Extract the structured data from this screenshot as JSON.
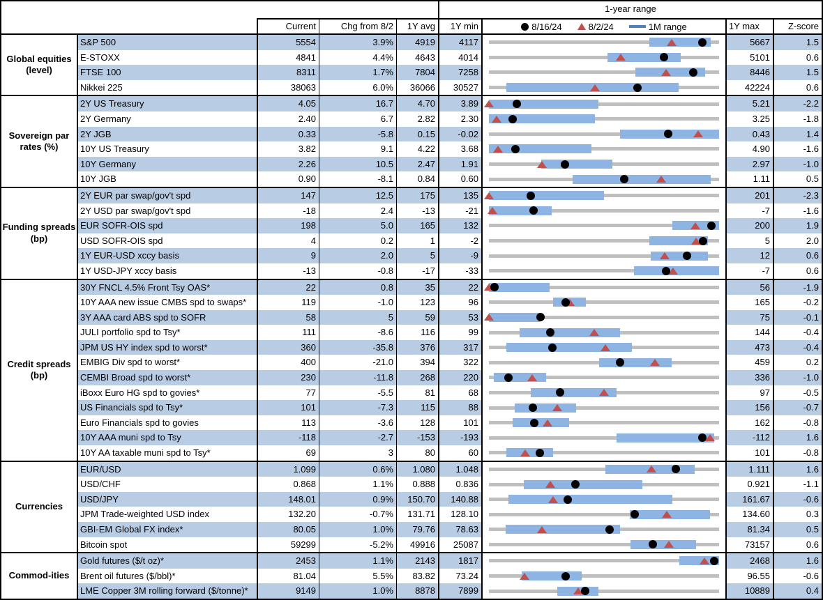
{
  "header": {
    "range_title": "1-year range",
    "columns": {
      "current": "Current",
      "chg": "Chg from 8/2",
      "avg": "1Y avg",
      "min": "1Y min",
      "max": "1Y max",
      "z": "Z-score"
    },
    "legend": [
      {
        "icon": "black-dot",
        "label": "8/16/24"
      },
      {
        "icon": "red-triangle",
        "label": "8/2/24"
      },
      {
        "icon": "blue-bar",
        "label": "1M range"
      }
    ]
  },
  "colors": {
    "row_tint": "#b8cce4",
    "range_bar": "#8eb4e3",
    "legend_bar": "#4f81bd",
    "track_gray": "#bfbfbf",
    "triangle_red": "#c0504d",
    "dot_black": "#000000"
  },
  "chart_data": {
    "type": "table",
    "note": "Market monitor table; each row has a bullet-style 1-year range strip. dot/tri/bar values are fractions of the 1Y min-to-max span: dot = 8/16/24 level, tri = 8/2/24 level, bar = [low, high] of the 1M range.",
    "sections": [
      {
        "group": "Global equities (level)",
        "rows": [
          {
            "name": "S&P 500",
            "current": "5554",
            "chg": "3.9%",
            "avg": "4919",
            "min": "4117",
            "max": "5667",
            "z": "1.5",
            "bar": [
              0.697,
              0.964
            ],
            "dot": 0.927,
            "tri": 0.793
          },
          {
            "name": "E-STOXX",
            "current": "4841",
            "chg": "4.4%",
            "avg": "4643",
            "min": "4014",
            "max": "5101",
            "z": "0.6",
            "bar": [
              0.515,
              0.833
            ],
            "dot": 0.761,
            "tri": 0.573
          },
          {
            "name": "FTSE 100",
            "current": "8311",
            "chg": "1.7%",
            "avg": "7804",
            "min": "7258",
            "max": "8446",
            "z": "1.5",
            "bar": [
              0.636,
              0.939
            ],
            "dot": 0.886,
            "tri": 0.769
          },
          {
            "name": "Nikkei 225",
            "current": "38063",
            "chg": "6.0%",
            "avg": "36066",
            "min": "30527",
            "max": "42224",
            "z": "0.6",
            "bar": [
              0.076,
              0.824
            ],
            "dot": 0.644,
            "tri": 0.46
          }
        ]
      },
      {
        "group": "Sovereign par rates (%)",
        "rows": [
          {
            "name": "2Y US Treasury",
            "current": "4.05",
            "chg": "16.7",
            "avg": "4.70",
            "min": "3.89",
            "max": "5.21",
            "z": "-2.2",
            "bar": [
              0.0,
              0.476
            ],
            "dot": 0.121,
            "tri": 0.0
          },
          {
            "name": "2Y Germany",
            "current": "2.40",
            "chg": "6.7",
            "avg": "2.82",
            "min": "2.30",
            "max": "3.25",
            "z": "-1.8",
            "bar": [
              0.0,
              0.46
            ],
            "dot": 0.105,
            "tri": 0.035
          },
          {
            "name": "2Y JGB",
            "current": "0.33",
            "chg": "-5.8",
            "avg": "0.15",
            "min": "-0.02",
            "max": "0.43",
            "z": "1.4",
            "bar": [
              0.57,
              1.0
            ],
            "dot": 0.778,
            "tri": 0.907
          },
          {
            "name": "10Y US Treasury",
            "current": "3.82",
            "chg": "9.1",
            "avg": "4.22",
            "min": "3.68",
            "max": "4.90",
            "z": "-1.6",
            "bar": [
              0.0,
              0.445
            ],
            "dot": 0.115,
            "tri": 0.04
          },
          {
            "name": "10Y Germany",
            "current": "2.26",
            "chg": "10.5",
            "avg": "2.47",
            "min": "1.91",
            "max": "2.97",
            "z": "-1.0",
            "bar": [
              0.227,
              0.536
            ],
            "dot": 0.33,
            "tri": 0.231
          },
          {
            "name": "10Y JGB",
            "current": "0.90",
            "chg": "-8.1",
            "avg": "0.84",
            "min": "0.60",
            "max": "1.11",
            "z": "0.5",
            "bar": [
              0.364,
              0.964
            ],
            "dot": 0.588,
            "tri": 0.747
          }
        ]
      },
      {
        "group": "Funding spreads (bp)",
        "rows": [
          {
            "name": "2Y EUR par swap/gov't spd",
            "current": "147",
            "chg": "12.5",
            "avg": "175",
            "min": "135",
            "max": "201",
            "z": "-2.3",
            "bar": [
              0.0,
              0.5
            ],
            "dot": 0.182,
            "tri": 0.0
          },
          {
            "name": "2Y USD par swap/gov't spd",
            "current": "-18",
            "chg": "2.4",
            "avg": "-13",
            "min": "-21",
            "max": "-7",
            "z": "-1.6",
            "bar": [
              0.0,
              0.273
            ],
            "dot": 0.195,
            "tri": 0.015
          },
          {
            "name": "EUR SOFR-OIS spd",
            "current": "198",
            "chg": "5.0",
            "avg": "165",
            "min": "132",
            "max": "200",
            "z": "1.9",
            "bar": [
              0.797,
              1.0
            ],
            "dot": 0.965,
            "tri": 0.895
          },
          {
            "name": "USD SOFR-OIS spd",
            "current": "4",
            "chg": "0.2",
            "avg": "1",
            "min": "-2",
            "max": "5",
            "z": "2.0",
            "bar": [
              0.697,
              0.95
            ],
            "dot": 0.93,
            "tri": 0.9
          },
          {
            "name": "1Y EUR-USD xccy basis",
            "current": "9",
            "chg": "2.0",
            "avg": "5",
            "min": "-9",
            "max": "12",
            "z": "0.6",
            "bar": [
              0.703,
              0.95
            ],
            "dot": 0.86,
            "tri": 0.763
          },
          {
            "name": "1Y USD-JPY xccy basis",
            "current": "-13",
            "chg": "-0.8",
            "avg": "-17",
            "min": "-33",
            "max": "-7",
            "z": "0.6",
            "bar": [
              0.63,
              1.0
            ],
            "dot": 0.769,
            "tri": 0.8
          }
        ]
      },
      {
        "group": "Credit spreads (bp)",
        "rows": [
          {
            "name": "30Y FNCL 4.5% Front Tsy OAS*",
            "current": "22",
            "chg": "0.8",
            "avg": "35",
            "min": "22",
            "max": "56",
            "z": "-1.9",
            "bar": [
              0.0,
              0.264
            ],
            "dot": 0.025,
            "tri": 0.0
          },
          {
            "name": "10Y AAA new issue CMBS spd to swaps*",
            "current": "119",
            "chg": "-1.0",
            "avg": "123",
            "min": "96",
            "max": "165",
            "z": "-0.2",
            "bar": [
              0.278,
              0.421
            ],
            "dot": 0.333,
            "tri": 0.352
          },
          {
            "name": "3Y AAA card ABS spd to SOFR",
            "current": "58",
            "chg": "5",
            "avg": "59",
            "min": "53",
            "max": "75",
            "z": "-0.1",
            "bar": [
              0.0,
              0.225
            ],
            "dot": 0.224,
            "tri": 0.0
          },
          {
            "name": "JULI portfolio spd to Tsy*",
            "current": "111",
            "chg": "-8.6",
            "avg": "116",
            "min": "99",
            "max": "144",
            "z": "-0.4",
            "bar": [
              0.134,
              0.571
            ],
            "dot": 0.266,
            "tri": 0.457
          },
          {
            "name": "JPM US HY index spd to worst*",
            "current": "360",
            "chg": "-35.8",
            "avg": "376",
            "min": "317",
            "max": "473",
            "z": "-0.4",
            "bar": [
              0.076,
              0.621
            ],
            "dot": 0.276,
            "tri": 0.506
          },
          {
            "name": "EMBIG Div spd to worst*",
            "current": "400",
            "chg": "-21.0",
            "avg": "394",
            "min": "322",
            "max": "459",
            "z": "0.2",
            "bar": [
              0.479,
              0.794
            ],
            "dot": 0.569,
            "tri": 0.722
          },
          {
            "name": "CEMBI Broad spd to worst*",
            "current": "230",
            "chg": "-11.8",
            "avg": "268",
            "min": "220",
            "max": "336",
            "z": "-1.0",
            "bar": [
              0.021,
              0.248
            ],
            "dot": 0.086,
            "tri": 0.187
          },
          {
            "name": "iBoxx Euro HG spd to govies*",
            "current": "77",
            "chg": "-5.5",
            "avg": "81",
            "min": "68",
            "max": "97",
            "z": "-0.5",
            "bar": [
              0.182,
              0.555
            ],
            "dot": 0.31,
            "tri": 0.499
          },
          {
            "name": "US Financials spd to Tsy*",
            "current": "101",
            "chg": "-7.3",
            "avg": "115",
            "min": "88",
            "max": "156",
            "z": "-0.7",
            "bar": [
              0.112,
              0.379
            ],
            "dot": 0.19,
            "tri": 0.298
          },
          {
            "name": "Euro Financials spd to govies",
            "current": "113",
            "chg": "-3.6",
            "avg": "128",
            "min": "101",
            "max": "162",
            "z": "-0.8",
            "bar": [
              0.103,
              0.348
            ],
            "dot": 0.199,
            "tri": 0.256
          },
          {
            "name": "10Y AAA muni spd to Tsy",
            "current": "-118",
            "chg": "-2.7",
            "avg": "-153",
            "min": "-193",
            "max": "-112",
            "z": "1.6",
            "bar": [
              0.555,
              0.979
            ],
            "dot": 0.926,
            "tri": 0.96
          },
          {
            "name": "10Y AA taxable muni spd to Tsy*",
            "current": "69",
            "chg": "3",
            "avg": "80",
            "min": "60",
            "max": "101",
            "z": "-0.8",
            "bar": [
              0.076,
              0.279
            ],
            "dot": 0.221,
            "tri": 0.157
          }
        ]
      },
      {
        "group": "Currencies",
        "rows": [
          {
            "name": "EUR/USD",
            "current": "1.099",
            "chg": "0.6%",
            "avg": "1.080",
            "min": "1.048",
            "max": "1.111",
            "z": "1.6",
            "bar": [
              0.505,
              0.894
            ],
            "dot": 0.812,
            "tri": 0.706
          },
          {
            "name": "USD/CHF",
            "current": "0.868",
            "chg": "1.1%",
            "avg": "0.888",
            "min": "0.836",
            "max": "0.921",
            "z": "-1.1",
            "bar": [
              0.152,
              0.667
            ],
            "dot": 0.377,
            "tri": 0.267
          },
          {
            "name": "USD/JPY",
            "current": "148.01",
            "chg": "0.9%",
            "avg": "150.70",
            "min": "140.88",
            "max": "161.67",
            "z": "-0.6",
            "bar": [
              0.085,
              0.797
            ],
            "dot": 0.343,
            "tri": 0.279
          },
          {
            "name": "JPM Trade-weighted USD index",
            "current": "132.20",
            "chg": "-0.7%",
            "avg": "131.71",
            "min": "128.10",
            "max": "134.60",
            "z": "0.3",
            "bar": [
              0.612,
              0.961
            ],
            "dot": 0.632,
            "tri": 0.773
          },
          {
            "name": "GBI-EM Global FX index*",
            "current": "80.05",
            "chg": "1.0%",
            "avg": "79.76",
            "min": "78.63",
            "max": "81.34",
            "z": "0.5",
            "bar": [
              0.073,
              0.57
            ],
            "dot": 0.524,
            "tri": 0.231
          },
          {
            "name": "Bitcoin spot",
            "current": "59299",
            "chg": "-5.2%",
            "avg": "49916",
            "min": "25087",
            "max": "73157",
            "z": "0.6",
            "bar": [
              0.615,
              0.9
            ],
            "dot": 0.713,
            "tri": 0.78
          }
        ]
      },
      {
        "group": "Commod-ities",
        "rows": [
          {
            "name": "Gold futures ($/t oz)*",
            "current": "2453",
            "chg": "1.1%",
            "avg": "2143",
            "min": "1817",
            "max": "2468",
            "z": "1.6",
            "bar": [
              0.827,
              1.0
            ],
            "dot": 0.978,
            "tri": 0.937
          },
          {
            "name": "Brent oil futures ($/bbl)*",
            "current": "81.04",
            "chg": "5.5%",
            "avg": "83.82",
            "min": "73.24",
            "max": "96.55",
            "z": "-0.6",
            "bar": [
              0.142,
              0.403
            ],
            "dot": 0.335,
            "tri": 0.154
          },
          {
            "name": "LME Copper 3M rolling forward ($/tonne)*",
            "current": "9149",
            "chg": "1.0%",
            "avg": "8878",
            "min": "7899",
            "max": "10889",
            "z": "0.4",
            "bar": [
              0.297,
              0.476
            ],
            "dot": 0.418,
            "tri": 0.388
          }
        ]
      }
    ]
  }
}
